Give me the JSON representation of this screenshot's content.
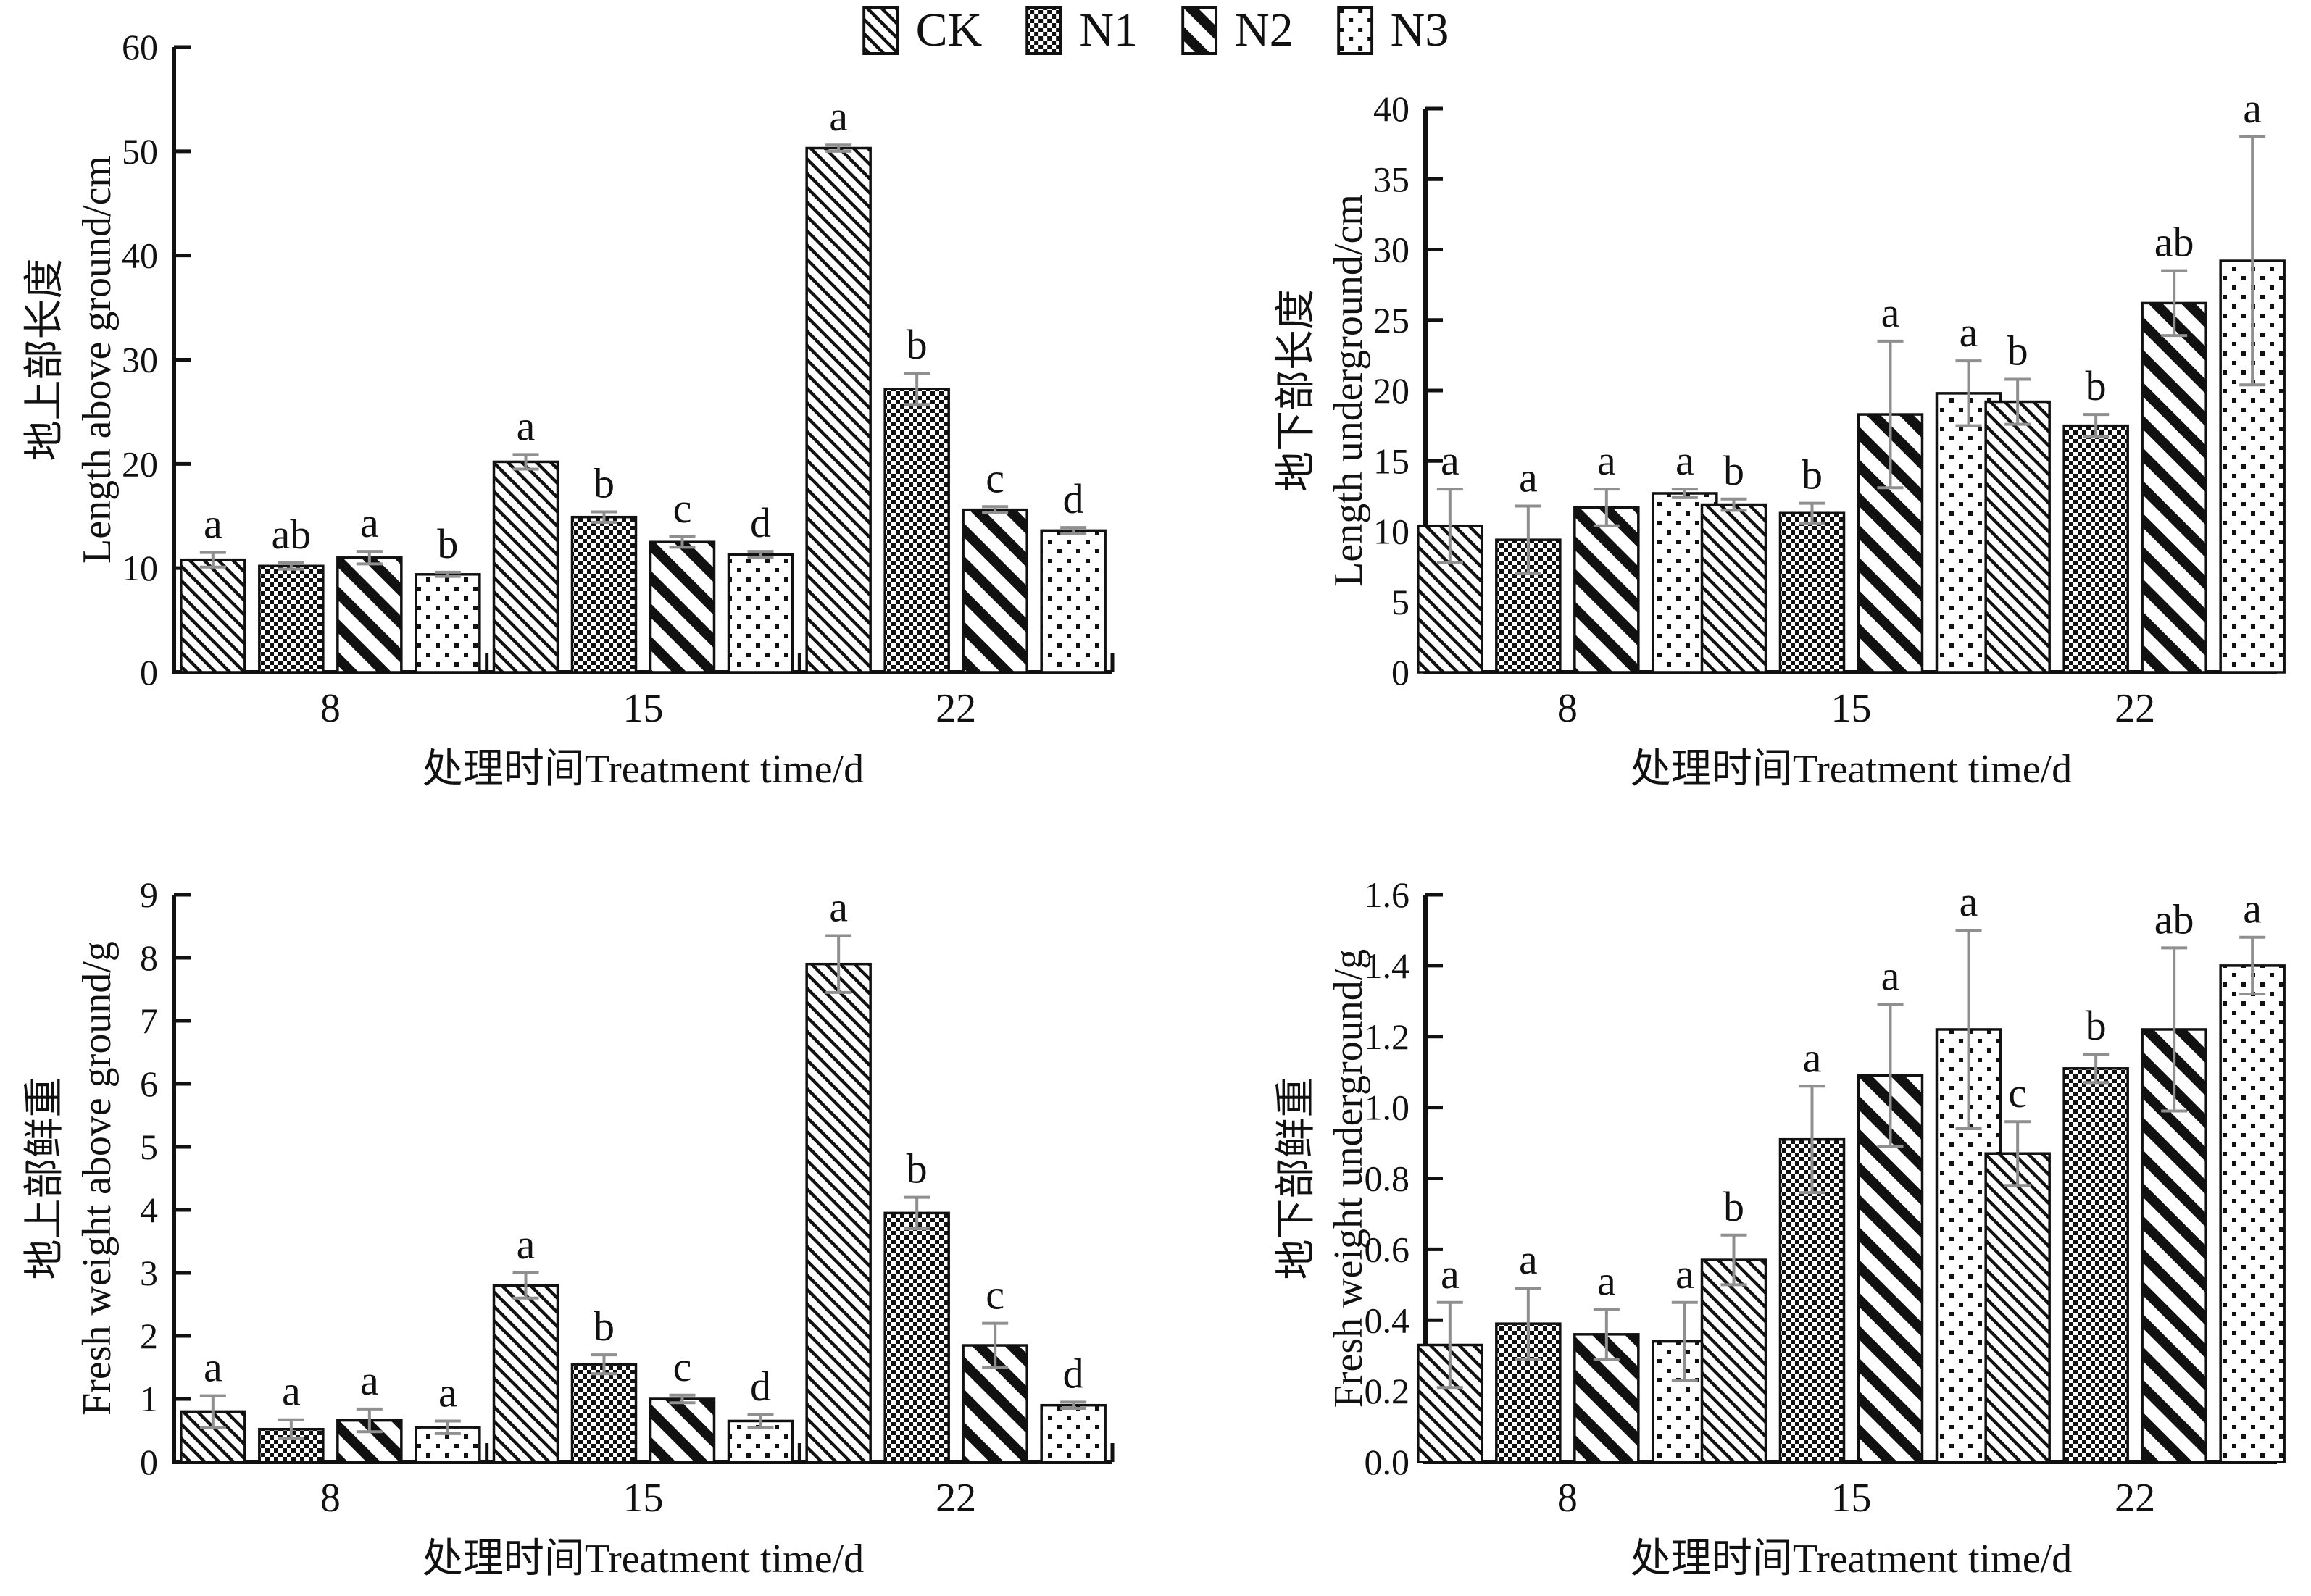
{
  "legend": {
    "items": [
      {
        "label": "CK",
        "pattern": "diagonal-thin"
      },
      {
        "label": "N1",
        "pattern": "checkerboard"
      },
      {
        "label": "N2",
        "pattern": "diagonal-thick"
      },
      {
        "label": "N3",
        "pattern": "dots"
      }
    ],
    "position": "top-center"
  },
  "colors": {
    "axis": "#111111",
    "text": "#111111",
    "bar_fill": "#111111",
    "error_bar": "#8f8f8f",
    "background": "#ffffff"
  },
  "chart_data": [
    {
      "id": "length-above-ground",
      "type": "bar",
      "position": "top-left",
      "ylabel_zh": "地上部长度",
      "ylabel_en": "Length above ground/cm",
      "xlabel": "处理时间Treatment time/d",
      "categories": [
        "8",
        "15",
        "22"
      ],
      "ylim": [
        0,
        60
      ],
      "ytick_step": 10,
      "ytick_decimals": 0,
      "grid": false,
      "series": [
        {
          "name": "CK",
          "pattern": "diagonal-thin",
          "values": [
            10.8,
            20.2,
            50.3
          ],
          "errors": [
            0.7,
            0.7,
            0.3
          ],
          "sig_letters": [
            "a",
            "a",
            "a"
          ]
        },
        {
          "name": "N1",
          "pattern": "checkerboard",
          "values": [
            10.2,
            14.9,
            27.2
          ],
          "errors": [
            0.3,
            0.5,
            1.5
          ],
          "sig_letters": [
            "ab",
            "b",
            "b"
          ]
        },
        {
          "name": "N2",
          "pattern": "diagonal-thick",
          "values": [
            11.0,
            12.5,
            15.6
          ],
          "errors": [
            0.6,
            0.5,
            0.3
          ],
          "sig_letters": [
            "a",
            "c",
            "c"
          ]
        },
        {
          "name": "N3",
          "pattern": "dots",
          "values": [
            9.4,
            11.3,
            13.6
          ],
          "errors": [
            0.2,
            0.3,
            0.3
          ],
          "sig_letters": [
            "b",
            "d",
            "d"
          ]
        }
      ]
    },
    {
      "id": "length-underground",
      "type": "bar",
      "position": "top-right",
      "ylabel_zh": "地下部长度",
      "ylabel_en": "Length underground/cm",
      "xlabel": "处理时间Treatment time/d",
      "categories": [
        "8",
        "15",
        "22"
      ],
      "ylim": [
        0,
        40
      ],
      "ytick_step": 5,
      "ytick_decimals": 0,
      "grid": false,
      "series": [
        {
          "name": "CK",
          "pattern": "diagonal-thin",
          "values": [
            10.4,
            11.9,
            19.2
          ],
          "errors": [
            2.6,
            0.4,
            1.6
          ],
          "sig_letters": [
            "a",
            "b",
            "b"
          ]
        },
        {
          "name": "N1",
          "pattern": "checkerboard",
          "values": [
            9.4,
            11.3,
            17.5
          ],
          "errors": [
            2.4,
            0.7,
            0.8
          ],
          "sig_letters": [
            "a",
            "b",
            "b"
          ]
        },
        {
          "name": "N2",
          "pattern": "diagonal-thick",
          "values": [
            11.7,
            18.3,
            26.2
          ],
          "errors": [
            1.3,
            5.2,
            2.3
          ],
          "sig_letters": [
            "a",
            "a",
            "ab"
          ]
        },
        {
          "name": "N3",
          "pattern": "dots",
          "values": [
            12.7,
            19.8,
            29.2
          ],
          "errors": [
            0.3,
            2.3,
            8.8
          ],
          "sig_letters": [
            "a",
            "a",
            "a"
          ]
        }
      ]
    },
    {
      "id": "fresh-weight-above-ground",
      "type": "bar",
      "position": "bottom-left",
      "ylabel_zh": "地上部鲜重",
      "ylabel_en": "Fresh weight above ground/g",
      "xlabel": "处理时间Treatment time/d",
      "categories": [
        "8",
        "15",
        "22"
      ],
      "ylim": [
        0,
        9
      ],
      "ytick_step": 1,
      "ytick_decimals": 0,
      "grid": false,
      "series": [
        {
          "name": "CK",
          "pattern": "diagonal-thin",
          "values": [
            0.8,
            2.8,
            7.9
          ],
          "errors": [
            0.25,
            0.2,
            0.45
          ],
          "sig_letters": [
            "a",
            "a",
            "a"
          ]
        },
        {
          "name": "N1",
          "pattern": "checkerboard",
          "values": [
            0.52,
            1.55,
            3.95
          ],
          "errors": [
            0.15,
            0.15,
            0.25
          ],
          "sig_letters": [
            "a",
            "b",
            "b"
          ]
        },
        {
          "name": "N2",
          "pattern": "diagonal-thick",
          "values": [
            0.66,
            1.0,
            1.85
          ],
          "errors": [
            0.18,
            0.06,
            0.35
          ],
          "sig_letters": [
            "a",
            "c",
            "c"
          ]
        },
        {
          "name": "N3",
          "pattern": "dots",
          "values": [
            0.55,
            0.65,
            0.9
          ],
          "errors": [
            0.1,
            0.1,
            0.05
          ],
          "sig_letters": [
            "a",
            "d",
            "d"
          ]
        }
      ]
    },
    {
      "id": "fresh-weight-underground",
      "type": "bar",
      "position": "bottom-right",
      "ylabel_zh": "地下部鲜重",
      "ylabel_en": "Fresh weight underground/g",
      "xlabel": "处理时间Treatment time/d",
      "categories": [
        "8",
        "15",
        "22"
      ],
      "ylim": [
        0,
        1.6
      ],
      "ytick_step": 0.2,
      "ytick_decimals": 1,
      "grid": false,
      "series": [
        {
          "name": "CK",
          "pattern": "diagonal-thin",
          "values": [
            0.33,
            0.57,
            0.87
          ],
          "errors": [
            0.12,
            0.07,
            0.09
          ],
          "sig_letters": [
            "a",
            "b",
            "c"
          ]
        },
        {
          "name": "N1",
          "pattern": "checkerboard",
          "values": [
            0.39,
            0.91,
            1.11
          ],
          "errors": [
            0.1,
            0.15,
            0.04
          ],
          "sig_letters": [
            "a",
            "a",
            "b"
          ]
        },
        {
          "name": "N2",
          "pattern": "diagonal-thick",
          "values": [
            0.36,
            1.09,
            1.22
          ],
          "errors": [
            0.07,
            0.2,
            0.23
          ],
          "sig_letters": [
            "a",
            "a",
            "ab"
          ]
        },
        {
          "name": "N3",
          "pattern": "dots",
          "values": [
            0.34,
            1.22,
            1.4
          ],
          "errors": [
            0.11,
            0.28,
            0.08
          ],
          "sig_letters": [
            "a",
            "a",
            "a"
          ]
        }
      ]
    }
  ]
}
